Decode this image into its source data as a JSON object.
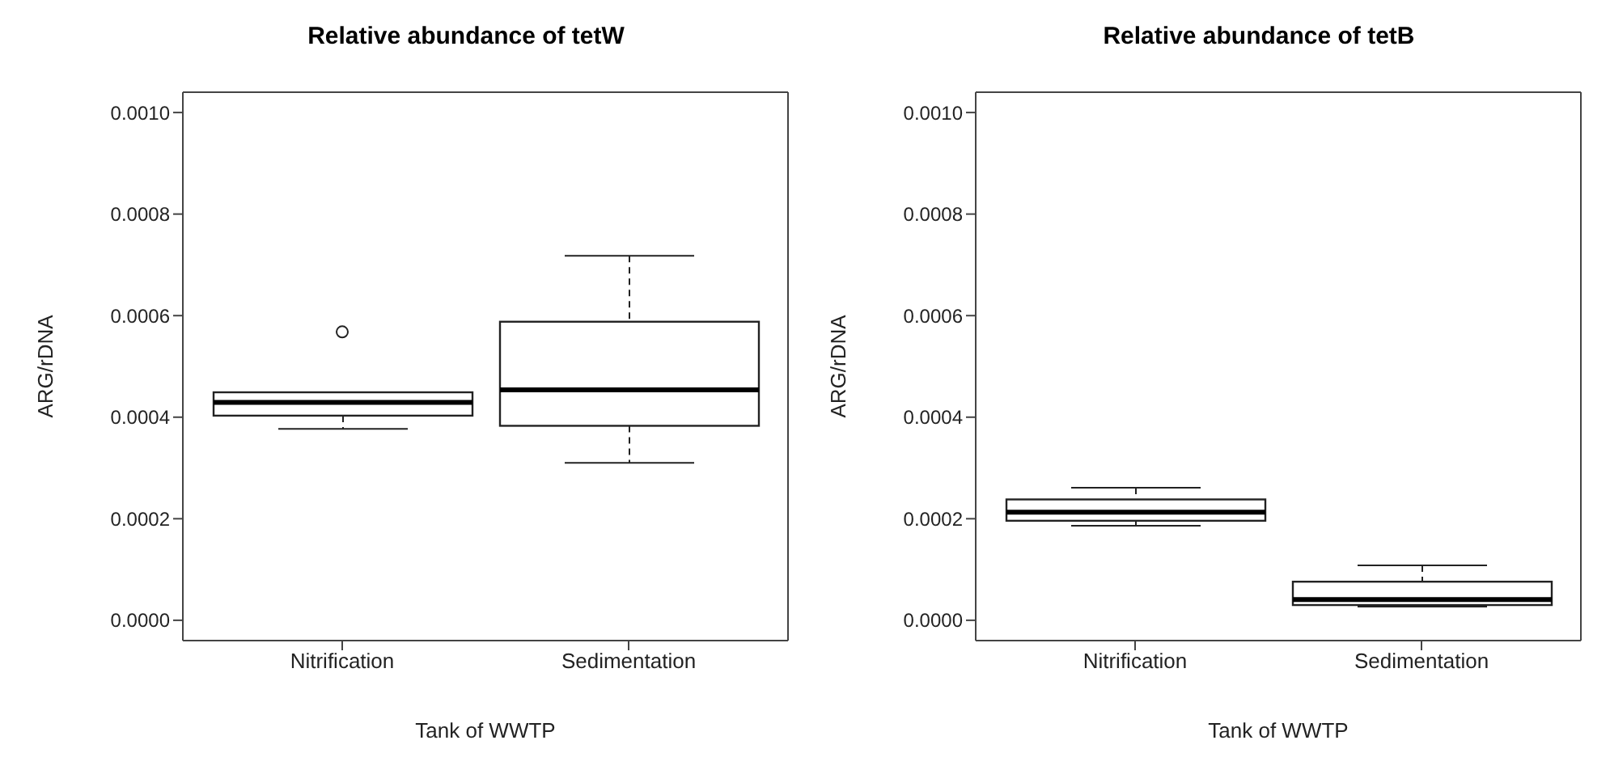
{
  "chart_data": [
    {
      "type": "box",
      "title": "Relative abundance of tetW",
      "xlabel": "Tank of WWTP",
      "ylabel": "ARG/rDNA",
      "categories": [
        "Nitrification",
        "Sedimentation"
      ],
      "boxes": [
        {
          "low": 0.000377,
          "q1": 0.000403,
          "median": 0.000429,
          "q3": 0.000449,
          "high": 0.000449,
          "outliers": [
            0.000568
          ]
        },
        {
          "low": 0.00031,
          "q1": 0.000383,
          "median": 0.000454,
          "q3": 0.000588,
          "high": 0.000718
        }
      ],
      "ylim": [
        -4e-05,
        0.00104
      ],
      "yticks": [
        {
          "value": 0,
          "label": "0.0000"
        },
        {
          "value": 0.0002,
          "label": "0.0002"
        },
        {
          "value": 0.0004,
          "label": "0.0004"
        },
        {
          "value": 0.0006,
          "label": "0.0006"
        },
        {
          "value": 0.0008,
          "label": "0.0008"
        },
        {
          "value": 0.001,
          "label": "0.0010"
        }
      ]
    },
    {
      "type": "box",
      "title": "Relative abundance of tetB",
      "xlabel": "Tank of WWTP",
      "ylabel": "ARG/rDNA",
      "categories": [
        "Nitrification",
        "Sedimentation"
      ],
      "boxes": [
        {
          "low": 0.000186,
          "q1": 0.000196,
          "median": 0.000213,
          "q3": 0.000238,
          "high": 0.000261
        },
        {
          "low": 2.7e-05,
          "q1": 3e-05,
          "median": 4.1e-05,
          "q3": 7.6e-05,
          "high": 0.000108
        }
      ],
      "ylim": [
        -4e-05,
        0.00104
      ],
      "yticks": [
        {
          "value": 0,
          "label": "0.0000"
        },
        {
          "value": 0.0002,
          "label": "0.0002"
        },
        {
          "value": 0.0004,
          "label": "0.0004"
        },
        {
          "value": 0.0006,
          "label": "0.0006"
        },
        {
          "value": 0.0008,
          "label": "0.0008"
        },
        {
          "value": 0.001,
          "label": "0.0010"
        }
      ]
    }
  ]
}
